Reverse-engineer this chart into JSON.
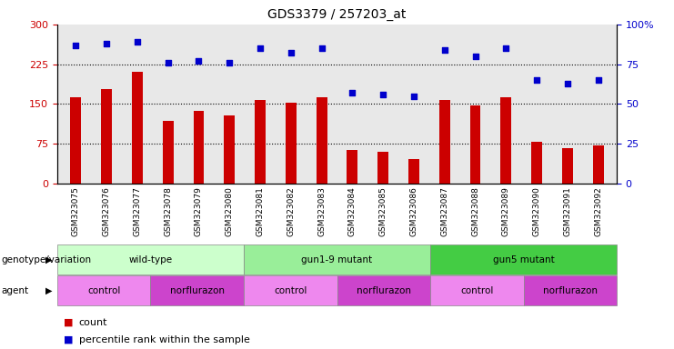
{
  "title": "GDS3379 / 257203_at",
  "samples": [
    "GSM323075",
    "GSM323076",
    "GSM323077",
    "GSM323078",
    "GSM323079",
    "GSM323080",
    "GSM323081",
    "GSM323082",
    "GSM323083",
    "GSM323084",
    "GSM323085",
    "GSM323086",
    "GSM323087",
    "GSM323088",
    "GSM323089",
    "GSM323090",
    "GSM323091",
    "GSM323092"
  ],
  "bar_values": [
    163,
    178,
    210,
    118,
    137,
    128,
    157,
    152,
    163,
    63,
    60,
    47,
    157,
    147,
    163,
    78,
    67,
    72
  ],
  "dot_values_pct": [
    87,
    88,
    89,
    76,
    77,
    76,
    85,
    82,
    85,
    57,
    56,
    55,
    84,
    80,
    85,
    65,
    63,
    65
  ],
  "bar_color": "#cc0000",
  "dot_color": "#0000cc",
  "ylim_left": [
    0,
    300
  ],
  "ylim_right": [
    0,
    100
  ],
  "yticks_left": [
    0,
    75,
    150,
    225,
    300
  ],
  "yticks_right": [
    0,
    25,
    50,
    75,
    100
  ],
  "ytick_labels_right": [
    "0",
    "25",
    "50",
    "75",
    "100%"
  ],
  "hlines": [
    75,
    150,
    225
  ],
  "plot_bg_color": "#e8e8e8",
  "genotype_groups": [
    {
      "label": "wild-type",
      "start": 0,
      "end": 5,
      "color": "#ccffcc"
    },
    {
      "label": "gun1-9 mutant",
      "start": 6,
      "end": 11,
      "color": "#99ee99"
    },
    {
      "label": "gun5 mutant",
      "start": 12,
      "end": 17,
      "color": "#44cc44"
    }
  ],
  "agent_groups": [
    {
      "label": "control",
      "start": 0,
      "end": 2,
      "color": "#ee88ee"
    },
    {
      "label": "norflurazon",
      "start": 3,
      "end": 5,
      "color": "#cc44cc"
    },
    {
      "label": "control",
      "start": 6,
      "end": 8,
      "color": "#ee88ee"
    },
    {
      "label": "norflurazon",
      "start": 9,
      "end": 11,
      "color": "#cc44cc"
    },
    {
      "label": "control",
      "start": 12,
      "end": 14,
      "color": "#ee88ee"
    },
    {
      "label": "norflurazon",
      "start": 15,
      "end": 17,
      "color": "#cc44cc"
    }
  ],
  "genotype_row_label": "genotype/variation",
  "agent_row_label": "agent",
  "legend_count_label": "count",
  "legend_pct_label": "percentile rank within the sample",
  "fig_width": 7.41,
  "fig_height": 3.84
}
